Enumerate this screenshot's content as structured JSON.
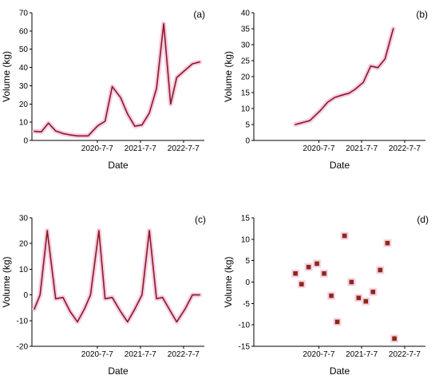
{
  "colors": {
    "series": "#8b1a1a",
    "halo": "#f3c6e4",
    "marker": "#8b2a12"
  },
  "chart_data": [
    {
      "panel": "(a)",
      "type": "line",
      "xlabel": "Date",
      "ylabel": "Volume (kg)",
      "ylim": [
        0,
        70
      ],
      "yticks": [
        0,
        10,
        20,
        30,
        40,
        50,
        60,
        70
      ],
      "xlim": [
        "2019-01-01",
        "2022-12-31"
      ],
      "xticks": [
        {
          "date": "2020-07-07",
          "label": "2020-7-7"
        },
        {
          "date": "2021-07-07",
          "label": "2021-7-7"
        },
        {
          "date": "2022-07-07",
          "label": "2022-7-7"
        }
      ],
      "grid": false,
      "x": [
        "2019-01-21",
        "2019-03-21",
        "2019-05-21",
        "2019-07-21",
        "2019-09-21",
        "2019-11-21",
        "2020-01-21",
        "2020-04-21",
        "2020-07-11",
        "2020-09-11",
        "2020-11-11",
        "2021-01-21",
        "2021-03-21",
        "2021-05-21",
        "2021-07-21",
        "2021-09-21",
        "2021-11-21",
        "2022-01-21",
        "2022-03-21",
        "2022-05-11",
        "2022-07-21",
        "2022-09-21",
        "2022-11-21"
      ],
      "y": [
        5,
        4.7,
        9.5,
        5.2,
        3.8,
        3,
        2.5,
        2.5,
        8,
        10.5,
        29.5,
        23.5,
        14.5,
        7.8,
        8.5,
        15,
        28.5,
        64,
        20,
        34.5,
        38.5,
        42,
        43
      ]
    },
    {
      "panel": "(b)",
      "type": "line",
      "xlabel": "Date",
      "ylabel": "Volume (kg)",
      "ylim": [
        0,
        40
      ],
      "yticks": [
        0,
        5,
        10,
        15,
        20,
        25,
        30,
        35,
        40
      ],
      "xlim": [
        "2019-01-01",
        "2022-12-31"
      ],
      "xticks": [
        {
          "date": "2020-07-07",
          "label": "2020-7-7"
        },
        {
          "date": "2021-07-07",
          "label": "2021-7-7"
        },
        {
          "date": "2022-07-07",
          "label": "2022-7-7"
        }
      ],
      "grid": false,
      "x": [
        "2019-12-21",
        "2020-01-21",
        "2020-04-21",
        "2020-07-21",
        "2020-09-21",
        "2020-11-21",
        "2021-01-21",
        "2021-03-21",
        "2021-05-11",
        "2021-07-21",
        "2021-09-21",
        "2021-11-21",
        "2022-01-21",
        "2022-04-01"
      ],
      "y": [
        5,
        5.3,
        6.2,
        9.4,
        12,
        13.5,
        14.2,
        14.8,
        16,
        18.2,
        23.3,
        22.8,
        25.5,
        35
      ]
    },
    {
      "panel": "(c)",
      "type": "line",
      "xlabel": "Date",
      "ylabel": "Volume (kg)",
      "ylim": [
        -20,
        30
      ],
      "yticks": [
        -20,
        -10,
        0,
        10,
        20,
        30
      ],
      "xlim": [
        "2019-01-01",
        "2022-12-31"
      ],
      "xticks": [
        {
          "date": "2020-07-07",
          "label": "2020-7-7"
        },
        {
          "date": "2021-07-07",
          "label": "2021-7-7"
        },
        {
          "date": "2022-07-07",
          "label": "2022-7-7"
        }
      ],
      "grid": false,
      "x": [
        "2019-01-21",
        "2019-03-11",
        "2019-05-11",
        "2019-07-21",
        "2019-09-21",
        "2019-11-21",
        "2020-01-21",
        "2020-03-21",
        "2020-05-11",
        "2020-07-21",
        "2020-09-11",
        "2020-11-11",
        "2021-01-21",
        "2021-03-21",
        "2021-05-21",
        "2021-07-21",
        "2021-09-21",
        "2021-11-21",
        "2022-01-11",
        "2022-03-21",
        "2022-05-11",
        "2022-07-21",
        "2022-09-21",
        "2022-11-21"
      ],
      "y": [
        -5.5,
        0,
        25,
        -1.5,
        -1,
        -6.5,
        -10.5,
        -5.5,
        0,
        25,
        -1.5,
        -1,
        -6.5,
        -10.5,
        -5.5,
        0,
        25,
        -1.5,
        -1,
        -6.5,
        -10.5,
        -5.5,
        0,
        0
      ]
    },
    {
      "panel": "(d)",
      "type": "scatter",
      "xlabel": "Date",
      "ylabel": "Volume (kg)",
      "ylim": [
        -15,
        15
      ],
      "yticks": [
        -15,
        -10,
        -5,
        0,
        5,
        10,
        15
      ],
      "xlim": [
        "2019-01-01",
        "2022-12-31"
      ],
      "xticks": [
        {
          "date": "2020-07-07",
          "label": "2020-7-7"
        },
        {
          "date": "2021-07-07",
          "label": "2021-7-7"
        },
        {
          "date": "2022-07-07",
          "label": "2022-7-7"
        }
      ],
      "grid": false,
      "x": [
        "2019-12-21",
        "2020-02-11",
        "2020-04-11",
        "2020-06-21",
        "2020-08-21",
        "2020-10-21",
        "2020-12-11",
        "2021-02-11",
        "2021-04-11",
        "2021-06-11",
        "2021-08-11",
        "2021-10-11",
        "2021-12-11",
        "2022-02-11",
        "2022-04-11"
      ],
      "y": [
        2,
        -0.5,
        3.5,
        4.3,
        2,
        -3.2,
        -9.3,
        10.8,
        0,
        -3.7,
        -4.5,
        -2.3,
        2.8,
        9.1,
        -13.2
      ]
    }
  ]
}
